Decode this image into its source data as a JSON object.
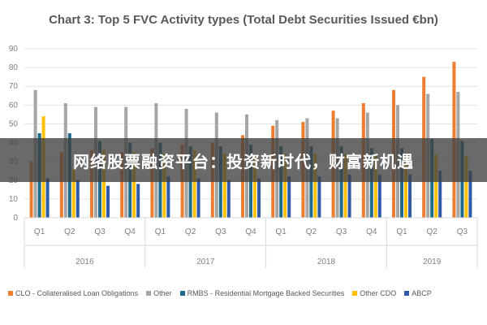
{
  "chart_data": {
    "type": "bar",
    "title": "Chart 3: Top 5 FVC Activity types (Total Debt Securities Issued €bn)",
    "categories": [
      "Q1",
      "Q2",
      "Q3",
      "Q4",
      "Q1",
      "Q2",
      "Q3",
      "Q4",
      "Q1",
      "Q2",
      "Q3",
      "Q4",
      "Q1",
      "Q2",
      "Q3"
    ],
    "years": [
      {
        "label": "2016",
        "quarters": 4
      },
      {
        "label": "2017",
        "quarters": 4
      },
      {
        "label": "2018",
        "quarters": 4
      },
      {
        "label": "2019",
        "quarters": 3
      }
    ],
    "ylim": [
      0,
      90
    ],
    "yticks": [
      0,
      10,
      20,
      30,
      40,
      50,
      60,
      70,
      80,
      90
    ],
    "grid": true,
    "legend_position": "bottom",
    "series": [
      {
        "name": "CLO - Collateralised Loan Obligations",
        "color": "#ed7d31",
        "values": [
          30,
          35,
          36,
          35,
          37,
          39,
          40,
          44,
          49,
          51,
          57,
          61,
          68,
          75,
          83
        ]
      },
      {
        "name": "Other",
        "color": "#a5a5a5",
        "values": [
          68,
          61,
          59,
          59,
          61,
          58,
          56,
          55,
          52,
          53,
          53,
          56,
          60,
          66,
          67
        ]
      },
      {
        "name": "RMBS - Residential Mortgage Backed Securities",
        "color": "#1f6b8a",
        "values": [
          45,
          45,
          41,
          40,
          40,
          38,
          38,
          39,
          38,
          38,
          38,
          37,
          37,
          42,
          41
        ]
      },
      {
        "name": "Other CDO",
        "color": "#ffc000",
        "values": [
          54,
          26,
          36,
          35,
          34,
          36,
          34,
          33,
          34,
          34,
          34,
          33,
          33,
          34,
          33
        ]
      },
      {
        "name": "ABCP",
        "color": "#2e5aa8",
        "values": [
          21,
          20,
          17,
          18,
          22,
          21,
          20,
          21,
          22,
          22,
          23,
          23,
          23,
          25,
          25
        ]
      }
    ]
  },
  "banner": {
    "text": "网络股票融资平台：投资新时代，财富新机遇"
  }
}
